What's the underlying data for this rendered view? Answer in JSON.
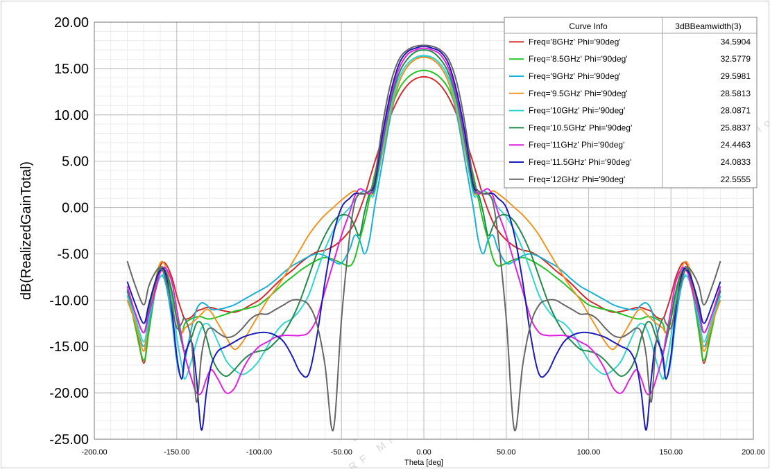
{
  "chart_data": {
    "type": "line",
    "xlabel": "Theta [deg]",
    "ylabel": "dB(RealizedGainTotal)",
    "xlim": [
      -200,
      200
    ],
    "ylim": [
      -25,
      20
    ],
    "x_ticks": [
      "-200.00",
      "-150.00",
      "-100.00",
      "-50.00",
      "0.00",
      "50.00",
      "100.00",
      "150.00",
      "200.00"
    ],
    "y_ticks": [
      "20.00",
      "15.00",
      "10.00",
      "5.00",
      "0.00",
      "-5.00",
      "-10.00",
      "-15.00",
      "-20.00",
      "-25.00"
    ],
    "grid": true,
    "legend": {
      "placement": "top-right",
      "header_curve": "Curve Info",
      "header_value": "3dBBeamwidth(3)"
    },
    "x": [
      -180,
      -175,
      -170,
      -167,
      -163,
      -160,
      -157,
      -153,
      -150,
      -147,
      -145,
      -141,
      -138,
      -135,
      -132,
      -129,
      -125,
      -120,
      -115,
      -110,
      -105,
      -100,
      -95,
      -90,
      -85,
      -80,
      -75,
      -70,
      -65,
      -60,
      -55,
      -50,
      -45,
      -42,
      -39,
      -36,
      -33,
      -30,
      -25,
      -20,
      -15,
      -10,
      -5,
      0,
      5,
      10,
      15,
      20,
      25,
      30,
      33,
      36,
      39,
      42,
      45,
      50,
      55,
      60,
      65,
      70,
      75,
      80,
      85,
      90,
      95,
      100,
      105,
      110,
      115,
      120,
      125,
      129,
      132,
      135,
      138,
      141,
      145,
      147,
      150,
      153,
      157,
      160,
      163,
      167,
      170,
      175,
      180
    ],
    "series": [
      {
        "name": "Freq='8GHz' Phi='90deg'",
        "beamwidth": "34.5904",
        "color": "#d22b2b",
        "values": [
          -9.5,
          -12.5,
          -16.8,
          -12.5,
          -8.5,
          -6.3,
          -6.0,
          -7.5,
          -9.5,
          -11.2,
          -12.0,
          -11.8,
          -11.2,
          -11.0,
          -10.8,
          -10.8,
          -11.0,
          -11.2,
          -11.3,
          -11.0,
          -10.5,
          -10.0,
          -9.2,
          -8.3,
          -7.5,
          -6.8,
          -6.0,
          -5.3,
          -4.8,
          -4.6,
          -4.2,
          -3.5,
          -2.5,
          -1.6,
          -0.3,
          1.2,
          3.0,
          4.8,
          7.5,
          10.0,
          11.9,
          13.2,
          13.9,
          14.1,
          13.9,
          13.2,
          11.9,
          10.0,
          7.5,
          4.8,
          3.0,
          1.2,
          -0.3,
          -1.6,
          -2.5,
          -3.5,
          -4.2,
          -4.6,
          -4.8,
          -5.3,
          -6.0,
          -6.8,
          -7.5,
          -8.3,
          -9.2,
          -10.0,
          -10.5,
          -11.0,
          -11.3,
          -11.2,
          -11.0,
          -10.8,
          -10.8,
          -11.0,
          -11.2,
          -11.8,
          -12.0,
          -11.2,
          -9.5,
          -7.5,
          -6.0,
          -6.3,
          -8.5,
          -12.5,
          -16.8,
          -12.5,
          -9.5
        ]
      },
      {
        "name": "Freq='8.5GHz' Phi='90deg'",
        "beamwidth": "32.5779",
        "color": "#22c322",
        "values": [
          -8.8,
          -13.0,
          -16.5,
          -13.5,
          -9.0,
          -7.0,
          -7.0,
          -9.5,
          -12.0,
          -13.5,
          -12.5,
          -12.0,
          -11.8,
          -11.8,
          -12.0,
          -12.0,
          -11.8,
          -11.5,
          -11.2,
          -11.0,
          -10.8,
          -10.5,
          -9.8,
          -9.0,
          -8.2,
          -7.5,
          -6.8,
          -6.2,
          -5.7,
          -5.4,
          -5.6,
          -6.0,
          -6.3,
          -5.5,
          -3.5,
          -1.5,
          1.0,
          3.5,
          7.0,
          10.5,
          12.8,
          14.0,
          14.6,
          14.8,
          14.6,
          14.0,
          12.8,
          10.5,
          7.0,
          3.5,
          1.0,
          -1.5,
          -3.5,
          -5.5,
          -6.3,
          -6.0,
          -5.6,
          -5.4,
          -5.7,
          -6.2,
          -6.8,
          -7.5,
          -8.2,
          -9.0,
          -9.8,
          -10.5,
          -10.8,
          -11.0,
          -11.2,
          -11.5,
          -11.8,
          -12.0,
          -12.0,
          -11.8,
          -11.8,
          -12.0,
          -12.5,
          -13.5,
          -12.0,
          -9.5,
          -7.0,
          -7.0,
          -9.0,
          -13.5,
          -16.5,
          -13.0,
          -8.8
        ]
      },
      {
        "name": "Freq='9GHz' Phi='90deg'",
        "beamwidth": "29.5981",
        "color": "#1ab0d6",
        "values": [
          -9.0,
          -12.5,
          -15.0,
          -12.5,
          -9.0,
          -7.5,
          -8.0,
          -12.0,
          -16.5,
          -18.5,
          -16.5,
          -13.0,
          -11.0,
          -10.3,
          -10.5,
          -11.0,
          -11.0,
          -10.8,
          -10.5,
          -10.0,
          -9.5,
          -9.0,
          -8.5,
          -7.8,
          -7.0,
          -6.3,
          -5.8,
          -5.3,
          -5.0,
          -5.2,
          -5.8,
          -6.0,
          -4.5,
          -3.0,
          -3.5,
          -5.0,
          -3.5,
          0.0,
          5.0,
          10.0,
          13.5,
          15.2,
          16.0,
          16.3,
          16.0,
          15.2,
          13.5,
          10.0,
          5.0,
          0.0,
          -3.5,
          -5.0,
          -3.5,
          -3.0,
          -4.5,
          -6.0,
          -5.8,
          -5.2,
          -5.0,
          -5.3,
          -5.8,
          -6.3,
          -7.0,
          -7.8,
          -8.5,
          -9.0,
          -9.5,
          -10.0,
          -10.5,
          -10.8,
          -11.0,
          -11.0,
          -10.5,
          -10.3,
          -11.0,
          -13.0,
          -16.5,
          -18.5,
          -16.5,
          -12.0,
          -8.0,
          -7.5,
          -9.0,
          -12.5,
          -15.0,
          -12.5,
          -9.0
        ]
      },
      {
        "name": "Freq='9.5GHz' Phi='90deg'",
        "beamwidth": "28.5813",
        "color": "#f0951e",
        "values": [
          -10.0,
          -12.5,
          -15.5,
          -12.0,
          -8.0,
          -6.0,
          -6.3,
          -9.0,
          -12.0,
          -13.5,
          -13.0,
          -12.5,
          -12.0,
          -11.5,
          -11.0,
          -11.3,
          -12.5,
          -14.0,
          -15.3,
          -14.5,
          -13.0,
          -11.5,
          -10.0,
          -8.8,
          -7.5,
          -6.0,
          -4.5,
          -3.0,
          -1.8,
          -0.8,
          0.0,
          0.8,
          1.5,
          1.8,
          1.5,
          1.5,
          1.5,
          1.8,
          6.0,
          10.5,
          13.5,
          15.2,
          16.0,
          16.2,
          16.0,
          15.2,
          13.5,
          10.5,
          6.0,
          1.8,
          1.5,
          1.5,
          1.5,
          1.8,
          1.5,
          0.8,
          0.0,
          -0.8,
          -1.8,
          -3.0,
          -4.5,
          -6.0,
          -7.5,
          -8.8,
          -10.0,
          -11.5,
          -13.0,
          -14.5,
          -15.3,
          -14.0,
          -12.5,
          -11.3,
          -11.0,
          -11.5,
          -12.0,
          -12.5,
          -13.0,
          -13.5,
          -12.0,
          -9.0,
          -6.3,
          -6.0,
          -8.0,
          -12.0,
          -15.5,
          -12.5,
          -10.0
        ]
      },
      {
        "name": "Freq='10GHz' Phi='90deg'",
        "beamwidth": "28.0871",
        "color": "#2fd6d0",
        "values": [
          -9.5,
          -12.0,
          -14.5,
          -12.0,
          -9.0,
          -7.5,
          -7.5,
          -10.0,
          -14.0,
          -17.0,
          -18.5,
          -16.5,
          -14.5,
          -13.0,
          -12.5,
          -13.0,
          -14.5,
          -16.5,
          -17.5,
          -18.0,
          -17.5,
          -16.5,
          -15.0,
          -13.5,
          -12.5,
          -12.0,
          -11.0,
          -9.5,
          -7.0,
          -4.5,
          -2.5,
          -1.0,
          0.0,
          0.8,
          1.5,
          1.8,
          1.5,
          1.5,
          6.5,
          11.0,
          14.0,
          15.5,
          16.2,
          16.4,
          16.2,
          15.5,
          14.0,
          11.0,
          6.5,
          1.5,
          1.5,
          1.8,
          1.5,
          0.8,
          0.0,
          -1.0,
          -2.5,
          -4.5,
          -7.0,
          -9.5,
          -11.0,
          -12.0,
          -12.5,
          -13.5,
          -15.0,
          -16.5,
          -17.5,
          -18.0,
          -17.5,
          -16.5,
          -14.5,
          -13.0,
          -12.5,
          -13.0,
          -14.5,
          -16.5,
          -18.5,
          -17.0,
          -14.0,
          -10.0,
          -7.5,
          -7.5,
          -9.0,
          -12.0,
          -14.5,
          -12.0,
          -9.5
        ]
      },
      {
        "name": "Freq='10.5GHz' Phi='90deg'",
        "beamwidth": "25.8837",
        "color": "#1f8a4a",
        "values": [
          -9.0,
          -11.5,
          -13.5,
          -11.0,
          -8.0,
          -6.5,
          -6.8,
          -9.0,
          -12.0,
          -14.5,
          -15.5,
          -14.0,
          -12.5,
          -12.5,
          -14.0,
          -16.0,
          -17.5,
          -18.2,
          -17.5,
          -16.5,
          -15.8,
          -15.5,
          -15.3,
          -14.5,
          -13.5,
          -12.0,
          -10.0,
          -7.5,
          -5.0,
          -3.0,
          -1.5,
          -0.8,
          -1.0,
          -2.0,
          -3.0,
          -0.5,
          1.5,
          2.0,
          7.0,
          11.5,
          14.5,
          16.0,
          16.8,
          17.0,
          16.8,
          16.0,
          14.5,
          11.5,
          7.0,
          2.0,
          1.5,
          -0.5,
          -3.0,
          -2.0,
          -1.0,
          -0.8,
          -1.5,
          -3.0,
          -5.0,
          -7.5,
          -10.0,
          -12.0,
          -13.5,
          -14.5,
          -15.3,
          -15.5,
          -15.8,
          -16.5,
          -17.5,
          -18.2,
          -17.5,
          -16.0,
          -14.0,
          -12.5,
          -12.5,
          -14.0,
          -15.5,
          -14.5,
          -12.0,
          -9.0,
          -6.8,
          -6.5,
          -8.0,
          -11.0,
          -13.5,
          -11.5,
          -9.0
        ]
      },
      {
        "name": "Freq='11GHz' Phi='90deg'",
        "beamwidth": "24.4463",
        "color": "#e020e0",
        "values": [
          -8.5,
          -11.5,
          -13.5,
          -11.5,
          -9.0,
          -7.0,
          -6.5,
          -8.0,
          -11.0,
          -14.0,
          -16.0,
          -18.5,
          -20.0,
          -20.0,
          -18.5,
          -17.5,
          -18.5,
          -20.0,
          -19.5,
          -17.5,
          -16.0,
          -15.0,
          -14.5,
          -14.0,
          -13.8,
          -13.8,
          -13.8,
          -13.5,
          -12.0,
          -9.0,
          -6.0,
          -3.0,
          -0.5,
          1.2,
          2.0,
          1.8,
          1.5,
          2.5,
          7.5,
          12.0,
          15.0,
          16.5,
          17.0,
          17.2,
          17.0,
          16.5,
          15.0,
          12.0,
          7.5,
          2.5,
          1.5,
          1.8,
          2.0,
          1.2,
          -0.5,
          -3.0,
          -6.0,
          -9.0,
          -12.0,
          -13.5,
          -13.8,
          -13.8,
          -13.8,
          -14.0,
          -14.5,
          -15.0,
          -16.0,
          -17.5,
          -19.5,
          -20.0,
          -18.5,
          -17.5,
          -18.5,
          -20.0,
          -20.0,
          -18.5,
          -16.0,
          -14.0,
          -11.0,
          -8.0,
          -6.5,
          -7.0,
          -9.0,
          -11.5,
          -13.5,
          -11.5,
          -8.5
        ]
      },
      {
        "name": "Freq='11.5GHz' Phi='90deg'",
        "beamwidth": "24.0833",
        "color": "#1a1ab8",
        "values": [
          -8.0,
          -10.5,
          -12.5,
          -10.5,
          -8.0,
          -6.8,
          -7.0,
          -11.0,
          -16.0,
          -18.5,
          -16.0,
          -14.5,
          -18.5,
          -24.0,
          -20.0,
          -17.0,
          -15.5,
          -15.0,
          -14.5,
          -14.0,
          -13.7,
          -13.5,
          -13.5,
          -13.8,
          -14.5,
          -16.0,
          -17.8,
          -18.0,
          -14.0,
          -8.0,
          -3.0,
          0.0,
          1.0,
          1.5,
          1.5,
          1.5,
          1.8,
          2.5,
          8.0,
          12.5,
          15.5,
          16.8,
          17.2,
          17.4,
          17.2,
          16.8,
          15.5,
          12.5,
          8.0,
          2.5,
          1.8,
          1.5,
          1.5,
          1.5,
          1.0,
          0.0,
          -3.0,
          -8.0,
          -14.0,
          -18.0,
          -17.8,
          -16.0,
          -14.5,
          -13.8,
          -13.5,
          -13.5,
          -13.7,
          -14.0,
          -14.5,
          -15.0,
          -15.5,
          -17.0,
          -20.0,
          -24.0,
          -18.5,
          -14.5,
          -16.0,
          -18.5,
          -16.0,
          -11.0,
          -7.0,
          -6.8,
          -8.0,
          -10.5,
          -12.5,
          -10.5,
          -8.0
        ]
      },
      {
        "name": "Freq='12GHz' Phi='90deg'",
        "beamwidth": "22.5555",
        "color": "#666666",
        "values": [
          -5.8,
          -8.5,
          -10.5,
          -8.5,
          -7.0,
          -6.5,
          -7.5,
          -10.5,
          -13.0,
          -12.5,
          -12.0,
          -14.5,
          -21.0,
          -16.0,
          -13.5,
          -13.0,
          -13.5,
          -14.0,
          -13.8,
          -13.0,
          -12.0,
          -11.5,
          -11.5,
          -11.0,
          -10.5,
          -10.0,
          -10.0,
          -10.5,
          -12.5,
          -17.0,
          -24.0,
          -12.0,
          -3.0,
          0.5,
          1.5,
          1.5,
          1.8,
          3.0,
          9.0,
          13.5,
          16.0,
          17.0,
          17.4,
          17.5,
          17.4,
          17.0,
          16.0,
          13.5,
          9.0,
          3.0,
          1.8,
          1.5,
          1.5,
          0.5,
          -3.0,
          -12.0,
          -24.0,
          -17.0,
          -12.5,
          -10.5,
          -10.0,
          -10.0,
          -10.5,
          -11.0,
          -11.5,
          -11.5,
          -12.0,
          -13.0,
          -13.8,
          -14.0,
          -13.5,
          -13.0,
          -13.5,
          -16.0,
          -21.0,
          -14.5,
          -12.0,
          -12.5,
          -13.0,
          -10.5,
          -7.5,
          -6.5,
          -7.0,
          -8.5,
          -10.5,
          -8.5,
          -5.8
        ]
      }
    ]
  },
  "watermark": {
    "text": "RF MISO",
    "sub_text": "RF Microwave Solution",
    "color": "#d8d8d8"
  }
}
